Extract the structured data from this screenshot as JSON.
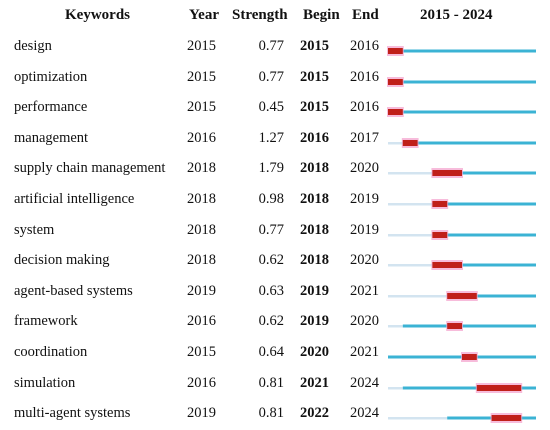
{
  "chart_data": {
    "type": "table",
    "headers": {
      "keywords": "Keywords",
      "year": "Year",
      "strength": "Strength",
      "begin": "Begin",
      "end": "End",
      "range": "2015 - 2024"
    },
    "range_start": 2015,
    "range_end": 2024,
    "rows": [
      {
        "keyword": "design",
        "year": "2015",
        "strength": "0.77",
        "begin": "2015",
        "end": "2016"
      },
      {
        "keyword": "optimization",
        "year": "2015",
        "strength": "0.77",
        "begin": "2015",
        "end": "2016"
      },
      {
        "keyword": "performance",
        "year": "2015",
        "strength": "0.45",
        "begin": "2015",
        "end": "2016"
      },
      {
        "keyword": "management",
        "year": "2016",
        "strength": "1.27",
        "begin": "2016",
        "end": "2017"
      },
      {
        "keyword": "supply chain management",
        "year": "2018",
        "strength": "1.79",
        "begin": "2018",
        "end": "2020"
      },
      {
        "keyword": "artificial intelligence",
        "year": "2018",
        "strength": "0.98",
        "begin": "2018",
        "end": "2019"
      },
      {
        "keyword": "system",
        "year": "2018",
        "strength": "0.77",
        "begin": "2018",
        "end": "2019"
      },
      {
        "keyword": "decision making",
        "year": "2018",
        "strength": "0.62",
        "begin": "2018",
        "end": "2020"
      },
      {
        "keyword": "agent-based systems",
        "year": "2019",
        "strength": "0.63",
        "begin": "2019",
        "end": "2021"
      },
      {
        "keyword": "framework",
        "year": "2016",
        "strength": "0.62",
        "begin": "2019",
        "end": "2020"
      },
      {
        "keyword": "coordination",
        "year": "2015",
        "strength": "0.64",
        "begin": "2020",
        "end": "2021"
      },
      {
        "keyword": "simulation",
        "year": "2016",
        "strength": "0.81",
        "begin": "2021",
        "end": "2024"
      },
      {
        "keyword": "multi-agent systems",
        "year": "2019",
        "strength": "0.81",
        "begin": "2022",
        "end": "2024"
      }
    ],
    "colors": {
      "burst": "#c0201a",
      "burst_glow": "#f4a6cf",
      "active": "#3bb3d4",
      "inactive": "#d3e4f0"
    }
  }
}
